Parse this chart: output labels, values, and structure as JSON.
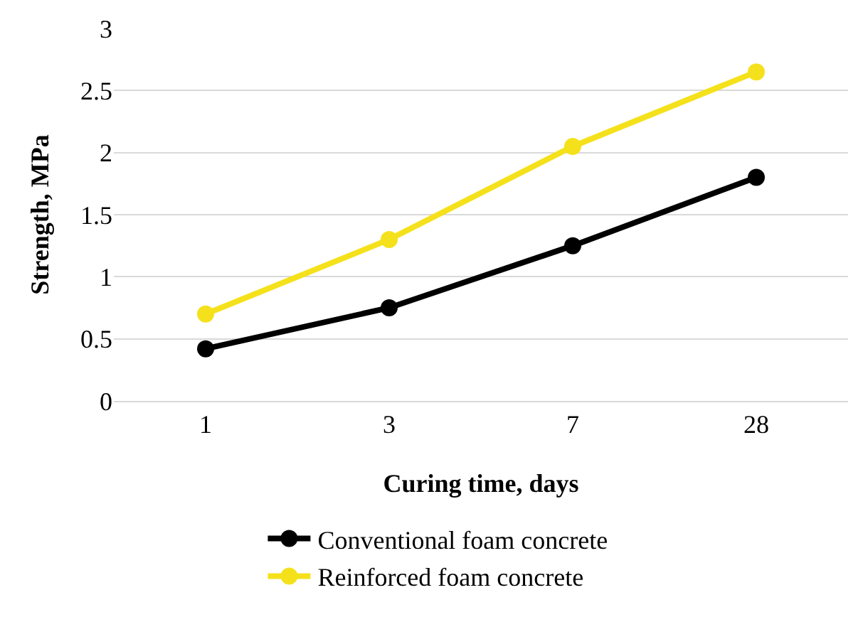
{
  "chart_data": {
    "type": "line",
    "xlabel": "Curing time, days",
    "ylabel": "Strength, MPa",
    "categories": [
      "1",
      "3",
      "7",
      "28"
    ],
    "series": [
      {
        "name": "Conventional foam concrete",
        "color": "#000000",
        "values": [
          0.42,
          0.75,
          1.25,
          1.8
        ]
      },
      {
        "name": "Reinforced foam concrete",
        "color": "#f5e11b",
        "values": [
          0.7,
          1.3,
          2.05,
          2.65
        ]
      }
    ],
    "ylim": [
      0,
      3
    ],
    "yticks": [
      0,
      0.5,
      1,
      1.5,
      2,
      2.5,
      3
    ],
    "grid": "y",
    "legend": "bottom",
    "marker": "circle",
    "line_style": "solid"
  }
}
